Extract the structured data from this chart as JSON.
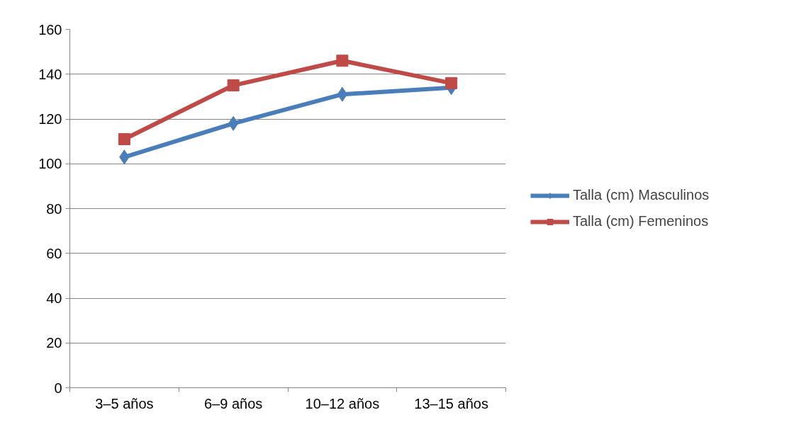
{
  "chart_data": {
    "type": "line",
    "categories": [
      "3–5 años",
      "6–9 años",
      "10–12 años",
      "13–15 años"
    ],
    "series": [
      {
        "name": "Talla (cm) Masculinos",
        "color": "#4a7ebb",
        "marker": "diamond",
        "values": [
          103,
          118,
          131,
          134
        ]
      },
      {
        "name": "Talla (cm) Femeninos",
        "color": "#be4b48",
        "marker": "square",
        "values": [
          111,
          135,
          146,
          136
        ]
      }
    ],
    "ylim": [
      0,
      160
    ],
    "yticks": [
      0,
      20,
      40,
      60,
      80,
      100,
      120,
      140,
      160
    ],
    "grid": "y",
    "legend": "right",
    "line_style": "solid"
  }
}
